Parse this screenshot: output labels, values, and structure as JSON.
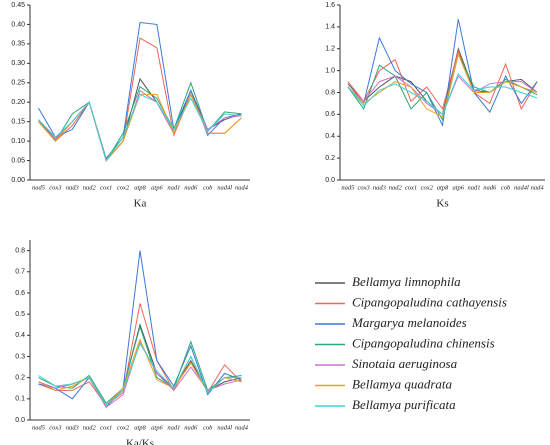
{
  "chart_data": [
    {
      "type": "line",
      "x_label": "Ka",
      "categories": [
        "nad5",
        "cox3",
        "nad3",
        "nad2",
        "cox1",
        "cox2",
        "atp8",
        "atp6",
        "nad1",
        "nad6",
        "cob",
        "nad4l",
        "nad4"
      ],
      "ylim": [
        0,
        0.45
      ],
      "yticks": [
        {
          "value": 0,
          "label": "0.00"
        },
        {
          "value": 0.05,
          "label": "0.05"
        },
        {
          "value": 0.1,
          "label": "0.10"
        },
        {
          "value": 0.15,
          "label": "0.15"
        },
        {
          "value": 0.2,
          "label": "0.20"
        },
        {
          "value": 0.25,
          "label": "0.25"
        },
        {
          "value": 0.3,
          "label": "0.30"
        },
        {
          "value": 0.35,
          "label": "0.35"
        },
        {
          "value": 0.4,
          "label": "0.40"
        },
        {
          "value": 0.45,
          "label": "0.45"
        }
      ],
      "series": [
        {
          "name": "Bellamya limnophila",
          "color": "#555555",
          "values": [
            0.155,
            0.105,
            0.15,
            0.2,
            0.05,
            0.1,
            0.26,
            0.2,
            0.12,
            0.23,
            0.13,
            0.155,
            0.17
          ]
        },
        {
          "name": "Cipangopaludina cathayensis",
          "color": "#f0645a",
          "values": [
            0.15,
            0.1,
            0.14,
            0.2,
            0.05,
            0.1,
            0.365,
            0.34,
            0.115,
            0.22,
            0.12,
            0.12,
            0.16
          ]
        },
        {
          "name": "Margarya melanoides",
          "color": "#3c78d8",
          "values": [
            0.185,
            0.11,
            0.13,
            0.2,
            0.055,
            0.11,
            0.405,
            0.4,
            0.13,
            0.23,
            0.115,
            0.16,
            0.17
          ]
        },
        {
          "name": "Cipangopaludina chinensis",
          "color": "#2ca87a",
          "values": [
            0.155,
            0.1,
            0.17,
            0.2,
            0.05,
            0.12,
            0.24,
            0.21,
            0.13,
            0.25,
            0.125,
            0.175,
            0.17
          ]
        },
        {
          "name": "Sinotaia aeruginosa",
          "color": "#d070d0",
          "values": [
            0.15,
            0.105,
            0.15,
            0.2,
            0.05,
            0.1,
            0.23,
            0.2,
            0.12,
            0.22,
            0.13,
            0.16,
            0.165
          ]
        },
        {
          "name": "Bellamya quadrata",
          "color": "#e8a020",
          "values": [
            0.15,
            0.1,
            0.15,
            0.2,
            0.05,
            0.1,
            0.22,
            0.22,
            0.12,
            0.22,
            0.12,
            0.12,
            0.16
          ]
        },
        {
          "name": "Bellamya purificata",
          "color": "#40d0d0",
          "values": [
            0.155,
            0.11,
            0.15,
            0.2,
            0.05,
            0.11,
            0.22,
            0.2,
            0.13,
            0.21,
            0.125,
            0.17,
            0.165
          ]
        }
      ]
    },
    {
      "type": "line",
      "x_label": "Ks",
      "categories": [
        "nad5",
        "cox3",
        "nad3",
        "nad2",
        "cox1",
        "cox2",
        "atp8",
        "atp6",
        "nad1",
        "nad6",
        "cob",
        "nad4l",
        "nad4"
      ],
      "ylim": [
        0,
        1.6
      ],
      "yticks": [
        {
          "value": 0,
          "label": "0.0"
        },
        {
          "value": 0.2,
          "label": "0.2"
        },
        {
          "value": 0.4,
          "label": "0.4"
        },
        {
          "value": 0.6,
          "label": "0.6"
        },
        {
          "value": 0.8,
          "label": "0.8"
        },
        {
          "value": 1,
          "label": "1.0"
        },
        {
          "value": 1.2,
          "label": "1.2"
        },
        {
          "value": 1.4,
          "label": "1.4"
        },
        {
          "value": 1.6,
          "label": "1.6"
        }
      ],
      "series": [
        {
          "name": "Bellamya limnophila",
          "color": "#555555",
          "values": [
            0.88,
            0.72,
            0.85,
            0.95,
            0.9,
            0.72,
            0.6,
            1.2,
            0.82,
            0.8,
            0.9,
            0.92,
            0.8
          ]
        },
        {
          "name": "Cipangopaludina cathayensis",
          "color": "#f0645a",
          "values": [
            0.9,
            0.72,
            1.0,
            1.1,
            0.72,
            0.85,
            0.65,
            1.18,
            0.8,
            0.7,
            1.06,
            0.65,
            0.9
          ]
        },
        {
          "name": "Margarya melanoides",
          "color": "#3c78d8",
          "values": [
            0.85,
            0.7,
            1.3,
            1.0,
            0.88,
            0.8,
            0.5,
            1.47,
            0.8,
            0.62,
            0.95,
            0.7,
            0.9
          ]
        },
        {
          "name": "Cipangopaludina chinensis",
          "color": "#2ca87a",
          "values": [
            0.85,
            0.65,
            1.05,
            0.95,
            0.65,
            0.8,
            0.55,
            1.15,
            0.85,
            0.8,
            0.92,
            0.85,
            0.78
          ]
        },
        {
          "name": "Sinotaia aeruginosa",
          "color": "#d070d0",
          "values": [
            0.85,
            0.72,
            0.9,
            0.95,
            0.85,
            0.7,
            0.6,
            0.95,
            0.8,
            0.88,
            0.9,
            0.9,
            0.8
          ]
        },
        {
          "name": "Bellamya quadrata",
          "color": "#e8a020",
          "values": [
            0.85,
            0.7,
            0.8,
            0.9,
            0.85,
            0.65,
            0.58,
            1.15,
            0.8,
            0.8,
            0.9,
            0.85,
            0.8
          ]
        },
        {
          "name": "Bellamya purificata",
          "color": "#40d0d0",
          "values": [
            0.85,
            0.68,
            0.82,
            0.88,
            0.8,
            0.72,
            0.6,
            0.97,
            0.82,
            0.85,
            0.85,
            0.8,
            0.75
          ]
        }
      ]
    },
    {
      "type": "line",
      "x_label": "Ka/Ks",
      "categories": [
        "nad5",
        "cox3",
        "nad3",
        "nad2",
        "cox1",
        "cox2",
        "atp8",
        "atp6",
        "nad1",
        "nad6",
        "cob",
        "nad4l",
        "nad4"
      ],
      "ylim": [
        0,
        0.85
      ],
      "yticks": [
        {
          "value": 0,
          "label": "0.0"
        },
        0.1,
        0.2,
        0.3,
        0.4,
        0.5,
        0.6,
        0.7,
        0.8
      ],
      "series": [
        {
          "name": "Bellamya limnophila",
          "color": "#555555",
          "values": [
            0.18,
            0.15,
            0.17,
            0.2,
            0.07,
            0.15,
            0.45,
            0.22,
            0.15,
            0.28,
            0.14,
            0.18,
            0.2
          ]
        },
        {
          "name": "Cipangopaludina cathayensis",
          "color": "#f0645a",
          "values": [
            0.17,
            0.14,
            0.14,
            0.18,
            0.07,
            0.13,
            0.55,
            0.28,
            0.14,
            0.3,
            0.13,
            0.26,
            0.18
          ]
        },
        {
          "name": "Margarya melanoides",
          "color": "#3c78d8",
          "values": [
            0.17,
            0.15,
            0.1,
            0.2,
            0.06,
            0.15,
            0.8,
            0.28,
            0.16,
            0.35,
            0.12,
            0.22,
            0.19
          ]
        },
        {
          "name": "Cipangopaludina chinensis",
          "color": "#2ca87a",
          "values": [
            0.2,
            0.16,
            0.15,
            0.21,
            0.08,
            0.15,
            0.44,
            0.2,
            0.15,
            0.37,
            0.14,
            0.2,
            0.21
          ]
        },
        {
          "name": "Sinotaia aeruginosa",
          "color": "#d070d0",
          "values": [
            0.18,
            0.15,
            0.17,
            0.2,
            0.06,
            0.12,
            0.37,
            0.22,
            0.14,
            0.25,
            0.14,
            0.17,
            0.19
          ]
        },
        {
          "name": "Bellamya quadrata",
          "color": "#e8a020",
          "values": [
            0.18,
            0.14,
            0.16,
            0.2,
            0.07,
            0.15,
            0.38,
            0.19,
            0.15,
            0.27,
            0.13,
            0.2,
            0.18
          ]
        },
        {
          "name": "Bellamya purificata",
          "color": "#40d0d0",
          "values": [
            0.21,
            0.16,
            0.17,
            0.2,
            0.07,
            0.14,
            0.36,
            0.23,
            0.15,
            0.3,
            0.13,
            0.2,
            0.2
          ]
        }
      ]
    }
  ]
}
